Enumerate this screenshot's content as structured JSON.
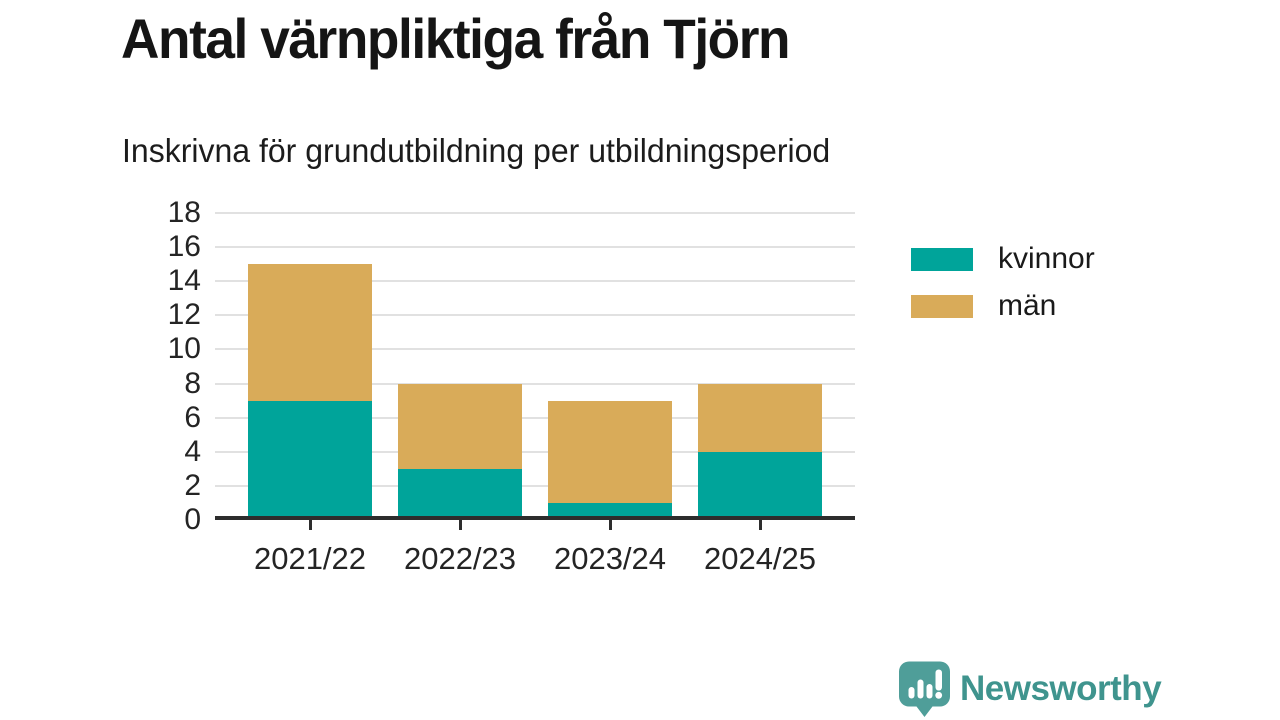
{
  "header": {
    "title": "Antal värnpliktiga från Tjörn",
    "subtitle": "Inskrivna för grundutbildning per utbildningsperiod"
  },
  "chart_data": {
    "type": "bar",
    "stacked": true,
    "title": "Antal värnpliktiga från Tjörn",
    "subtitle": "Inskrivna för grundutbildning per utbildningsperiod",
    "categories": [
      "2021/22",
      "2022/23",
      "2023/24",
      "2024/25"
    ],
    "series": [
      {
        "name": "kvinnor",
        "color": "#00a49a",
        "values": [
          7,
          3,
          1,
          4
        ]
      },
      {
        "name": "män",
        "color": "#d9ab59",
        "values": [
          8,
          5,
          6,
          4
        ]
      }
    ],
    "stacked_totals": [
      15,
      8,
      7,
      8
    ],
    "xlabel": "",
    "ylabel": "",
    "ylim": [
      0,
      18
    ],
    "ytick_step": 2,
    "grid": true,
    "legend_position": "right"
  },
  "styles": {
    "grid_color": "#e1e1e1",
    "axis_color": "#2d2d2d",
    "text_color": "#242424"
  },
  "footer": {
    "brand": "Newsworthy",
    "brand_text_color": "#3f948e",
    "brand_icon_color": "#4f9e99"
  }
}
